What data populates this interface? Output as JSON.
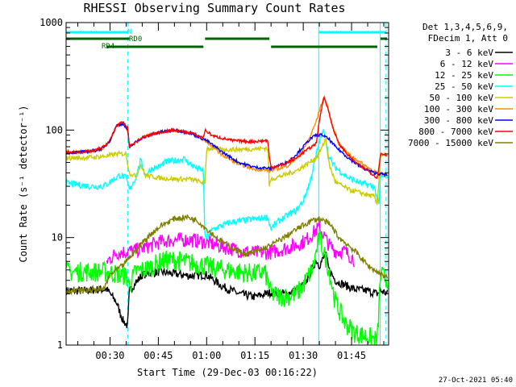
{
  "chart_data": {
    "type": "line",
    "title": "RHESSI Observing Summary Count Rates",
    "ylabel": "Count Rate (s⁻¹ detector⁻¹)",
    "xlabel": "Start Time (29-Dec-03 00:16:22)",
    "yscale": "log",
    "ylim": [
      1,
      1000
    ],
    "xlim_minutes": [
      16.37,
      116.5
    ],
    "y_tick_labels": [
      "1",
      "10",
      "100",
      "1000"
    ],
    "x_tick_labels": [
      "00:30",
      "00:45",
      "01:00",
      "01:15",
      "01:30",
      "01:45"
    ],
    "x_ticks_minutes": [
      30,
      45,
      60,
      75,
      90,
      105
    ],
    "legend_header": [
      "Det 1,3,4,5,6,9,",
      "FDecim 1, Att 0"
    ],
    "legend_position": "right",
    "timestamp": "27-Oct-2021 05:40",
    "flags": [
      {
        "label": "N",
        "color": "#00ffff",
        "segments": [
          [
            16.4,
            35.5
          ],
          [
            94.8,
            115.5
          ]
        ]
      },
      {
        "label": "RD0",
        "color": "#006400",
        "segments": [
          [
            16.4,
            36.0
          ],
          [
            59.5,
            79.5
          ],
          [
            114.0,
            116.0
          ]
        ]
      },
      {
        "label": "RD4",
        "color": "#006400",
        "segments": [
          [
            29.0,
            59.0
          ],
          [
            80.0,
            113.0
          ]
        ]
      }
    ],
    "vlines": [
      {
        "x": 35.5,
        "style": "dashed",
        "color": "#00ffff"
      },
      {
        "x": 115.7,
        "style": "dashed",
        "color": "#00ffff"
      },
      {
        "x": 94.8,
        "style": "solid",
        "color": "#00ffff"
      },
      {
        "x": 113.9,
        "style": "solid",
        "color": "#00ffff"
      }
    ],
    "series": [
      {
        "name": "3 - 6 keV",
        "color": "#000000",
        "x": [
          16.4,
          22,
          27,
          29,
          32,
          34,
          35.5,
          36,
          40,
          45,
          50,
          55,
          60,
          65,
          70,
          75,
          80,
          85,
          90,
          92,
          94,
          95,
          97,
          98,
          100,
          103,
          106,
          110,
          113,
          114,
          116.3
        ],
        "y": [
          3.2,
          3.2,
          3.3,
          3.3,
          2.5,
          1.7,
          1.5,
          3.2,
          4.5,
          4.8,
          4.6,
          4.4,
          4.5,
          3.5,
          3.0,
          2.8,
          3.1,
          3.0,
          3.6,
          4.5,
          6.2,
          5.5,
          7.0,
          5.0,
          4.0,
          3.6,
          3.3,
          3.2,
          3.0,
          3.2,
          3.0
        ]
      },
      {
        "name": "6 - 12 keV",
        "color": "#ff00ff",
        "x": [
          29,
          32,
          35,
          38,
          42,
          46,
          50,
          55,
          60,
          65,
          70,
          75,
          80,
          85,
          88,
          91,
          93,
          95,
          96,
          98,
          100,
          103,
          106
        ],
        "y": [
          6.0,
          7.2,
          7.4,
          7.6,
          8.3,
          9.2,
          9.5,
          9.5,
          9.0,
          8.2,
          7.6,
          7.2,
          7.3,
          8.0,
          8.5,
          9.5,
          11.0,
          12.5,
          11.0,
          8.5,
          7.5,
          7.4,
          6.2
        ]
      },
      {
        "name": "12 - 25 keV",
        "color": "#00ff00",
        "x": [
          16.4,
          22,
          28,
          32,
          35,
          36,
          38,
          42,
          46,
          50,
          55,
          59,
          62,
          66,
          70,
          75,
          78,
          79.5,
          80,
          84,
          88,
          90,
          93,
          95,
          96,
          98,
          100,
          103,
          106,
          110,
          113,
          114,
          116.3
        ],
        "y": [
          4.8,
          4.8,
          4.8,
          4.6,
          4.4,
          3.6,
          4.8,
          5.2,
          6.0,
          6.2,
          5.8,
          5.5,
          5.2,
          5.0,
          4.8,
          4.6,
          4.8,
          3.5,
          3.0,
          2.8,
          3.0,
          3.6,
          5.2,
          10.0,
          8.0,
          5.0,
          2.5,
          1.6,
          1.3,
          1.2,
          1.1,
          4.5,
          4.0
        ]
      },
      {
        "name": "25 - 50 keV",
        "color": "#00ffff",
        "x": [
          16.4,
          20,
          24,
          28,
          30,
          33,
          35,
          36,
          38,
          39.5,
          41,
          43,
          45,
          47,
          50,
          53,
          55,
          57,
          59,
          59.5,
          62,
          65,
          68,
          72,
          76,
          79,
          80,
          82,
          85,
          88,
          90,
          92,
          93.5,
          95,
          96.5,
          98,
          100,
          104,
          108,
          112,
          113.5,
          114,
          116.3
        ],
        "y": [
          32,
          31,
          30,
          30,
          33,
          38,
          36,
          28,
          36,
          52,
          38,
          44,
          45,
          50,
          52,
          54,
          48,
          44,
          42,
          9.5,
          12,
          13,
          14,
          14.5,
          15,
          15.5,
          12,
          14,
          16,
          18,
          22,
          32,
          50,
          78,
          100,
          55,
          45,
          36,
          32,
          30,
          20,
          37,
          38
        ]
      },
      {
        "name": "50 - 100 keV",
        "color": "#cccc00",
        "x": [
          16.4,
          20,
          25,
          28,
          30,
          32,
          35,
          36,
          38,
          39.5,
          41,
          45,
          50,
          55,
          58,
          59.5,
          60,
          65,
          70,
          75,
          79,
          79.5,
          80,
          84,
          88,
          91,
          94,
          96,
          97,
          98,
          100,
          104,
          108,
          112,
          113,
          114,
          116.3
        ],
        "y": [
          55,
          55,
          56,
          57,
          58,
          60,
          60,
          40,
          37,
          48,
          38,
          36,
          35,
          35,
          33,
          32,
          68,
          66,
          66,
          67,
          68,
          30,
          35,
          38,
          42,
          48,
          55,
          70,
          85,
          48,
          33,
          28,
          26,
          24,
          20,
          60,
          58
        ]
      },
      {
        "name": "100 - 300 keV",
        "color": "#ff8c00",
        "x": [
          16.4,
          20,
          25,
          28,
          30,
          32,
          34,
          35.5,
          36,
          40,
          45,
          50,
          55,
          60,
          65,
          70,
          75,
          80,
          85,
          88,
          90,
          92,
          94,
          95.5,
          96.5,
          97.5,
          99,
          101,
          104,
          107,
          110,
          113,
          116.3
        ],
        "y": [
          62,
          62,
          64,
          68,
          80,
          110,
          115,
          100,
          70,
          85,
          95,
          100,
          94,
          78,
          58,
          48,
          43,
          42,
          46,
          55,
          65,
          85,
          120,
          170,
          200,
          170,
          110,
          75,
          60,
          52,
          45,
          40,
          38
        ]
      },
      {
        "name": "300 - 800 keV",
        "color": "#0000ff",
        "x": [
          16.4,
          20,
          25,
          28,
          30,
          32,
          34,
          35.5,
          36,
          40,
          45,
          50,
          55,
          60,
          65,
          70,
          75,
          80,
          85,
          88,
          90,
          92,
          94,
          96,
          98,
          100,
          104,
          108,
          112,
          116.3
        ],
        "y": [
          62,
          62,
          64,
          68,
          80,
          110,
          115,
          100,
          70,
          85,
          95,
          100,
          94,
          80,
          62,
          50,
          45,
          44,
          50,
          60,
          70,
          82,
          90,
          90,
          82,
          70,
          55,
          45,
          40,
          38
        ]
      },
      {
        "name": "800 - 7000 keV",
        "color": "#ff0000",
        "x": [
          16.4,
          20,
          25,
          28,
          30,
          32,
          34,
          35.5,
          36,
          40,
          45,
          50,
          55,
          59,
          59.5,
          62,
          68,
          74,
          79,
          79.5,
          80,
          84,
          88,
          90,
          92,
          94,
          95.5,
          96.5,
          97.5,
          99,
          101,
          104,
          107,
          110,
          113,
          114,
          116.3
        ],
        "y": [
          62,
          62,
          64,
          70,
          80,
          110,
          118,
          105,
          70,
          85,
          95,
          100,
          94,
          85,
          100,
          88,
          80,
          78,
          80,
          55,
          45,
          48,
          55,
          62,
          68,
          75,
          150,
          205,
          165,
          110,
          75,
          58,
          48,
          42,
          36,
          60,
          58
        ]
      },
      {
        "name": "7000 - 15000 keV",
        "color": "#808000",
        "x": [
          16.4,
          22,
          28,
          30,
          32,
          34,
          36,
          38,
          40,
          43,
          46,
          50,
          54,
          57,
          60,
          64,
          68,
          72,
          76,
          80,
          84,
          88,
          91,
          93,
          95,
          97,
          99,
          101,
          104,
          107,
          110,
          113,
          116.3
        ],
        "y": [
          3.2,
          3.2,
          3.3,
          4.5,
          5.0,
          5.5,
          6.5,
          7.5,
          9.0,
          11.0,
          13.0,
          15.0,
          15.5,
          14.5,
          12.0,
          9.5,
          8.0,
          7.0,
          7.5,
          8.5,
          10.0,
          12.0,
          13.5,
          14.5,
          15.0,
          14.0,
          12.5,
          10.0,
          8.5,
          7.0,
          5.5,
          4.8,
          4.2
        ]
      }
    ]
  }
}
